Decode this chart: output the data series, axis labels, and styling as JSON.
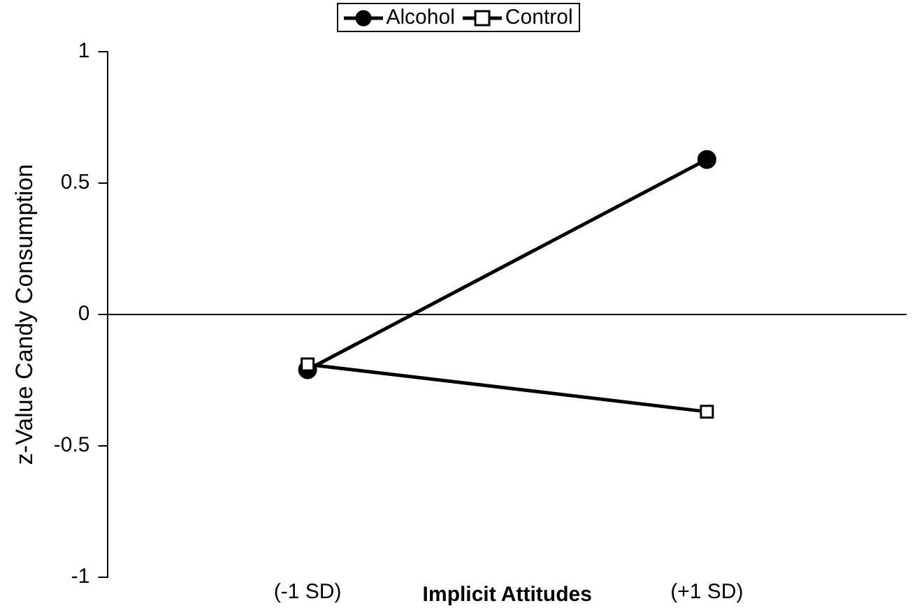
{
  "chart_data": {
    "type": "line",
    "categories": [
      "(-1 SD)",
      "(+1 SD)"
    ],
    "xlabel": "Implicit Attitudes",
    "ylabel": "z-Value Candy Consumption",
    "ylim": [
      -1,
      1
    ],
    "yticks": [
      -1,
      -0.5,
      0,
      0.5,
      1
    ],
    "grid": false,
    "legend": "top",
    "ref_lines": [
      {
        "axis": "y",
        "value": 0,
        "color": "#000000"
      }
    ],
    "series": [
      {
        "name": "Alcohol",
        "color": "#000000",
        "marker": "circle",
        "values": [
          -0.21,
          0.59
        ]
      },
      {
        "name": "Control",
        "color": "#000000",
        "marker": "square",
        "values": [
          -0.19,
          -0.37
        ]
      }
    ]
  }
}
